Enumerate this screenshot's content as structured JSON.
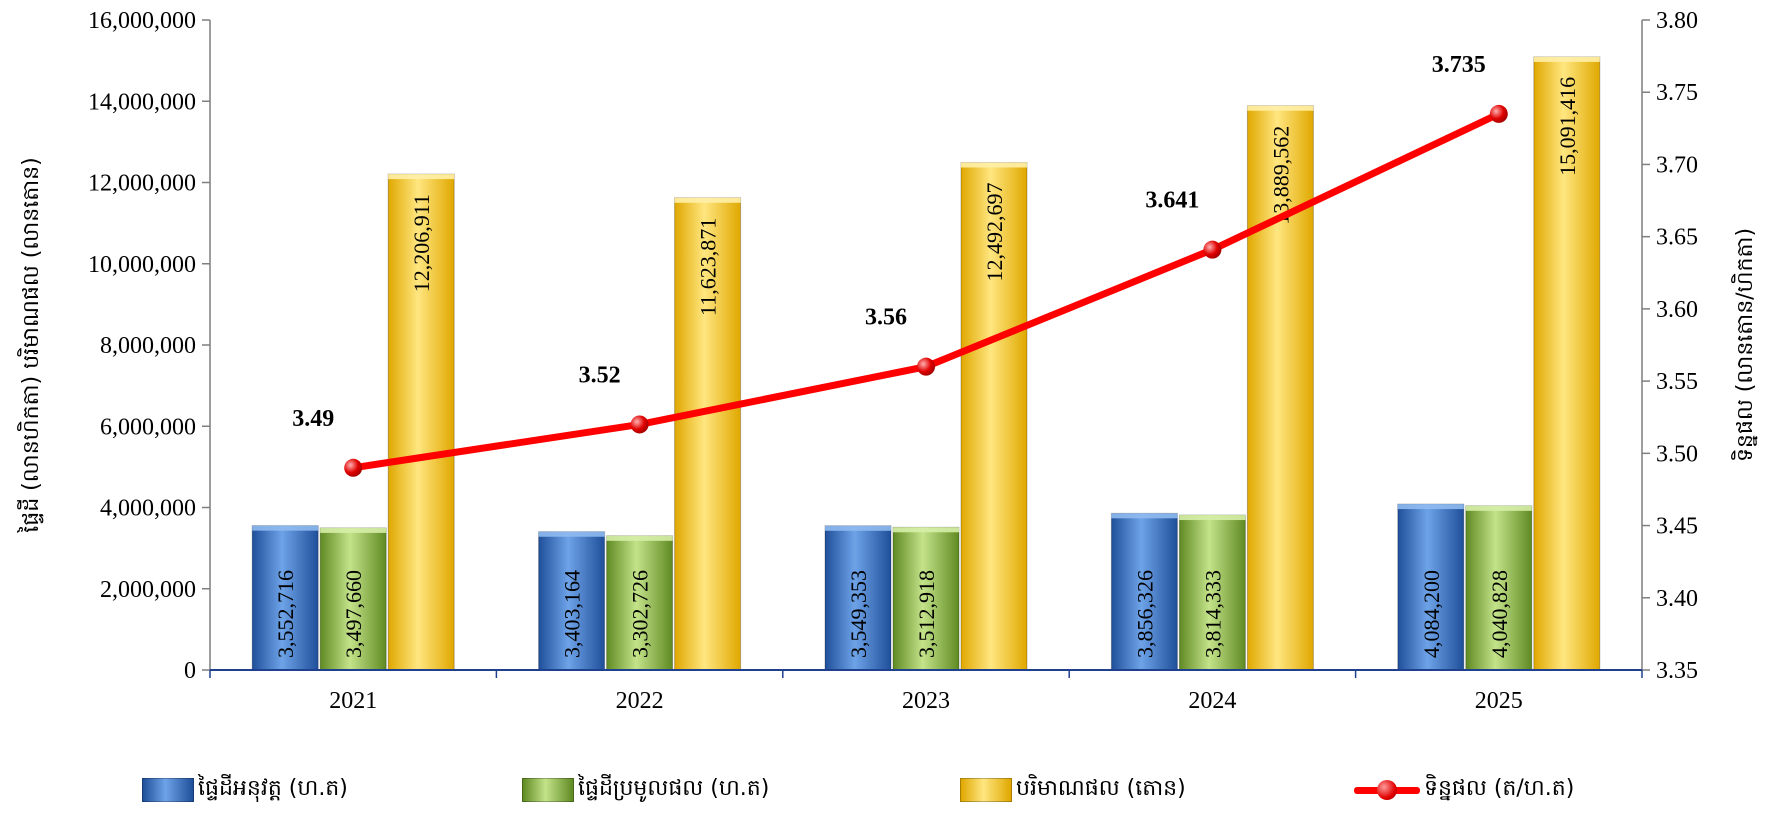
{
  "chart_data": {
    "type": "bar",
    "categories": [
      "2021",
      "2022",
      "2023",
      "2024",
      "2025"
    ],
    "series": [
      {
        "name": "ផ្ទៃដីអនុវត្ត (ហ.ត)",
        "axis": "left",
        "color": "#2f6fc4",
        "values": [
          3552716,
          3403164,
          3549353,
          3856326,
          4084200
        ],
        "labels": [
          "3,552,716",
          "3,403,164",
          "3,549,353",
          "3,856,326",
          "4,084,200"
        ]
      },
      {
        "name": "ផ្ទៃដីប្រមូលផល (ហ.ត)",
        "axis": "left",
        "color": "#8ab83c",
        "values": [
          3497660,
          3302726,
          3512918,
          3814333,
          4040828
        ],
        "labels": [
          "3,497,660",
          "3,302,726",
          "3,512,918",
          "3,814,333",
          "4,040,828"
        ]
      },
      {
        "name": "បរិមាណផល (តោន)",
        "axis": "left",
        "color": "#ffc000",
        "values": [
          12206911,
          11623871,
          12492697,
          13889562,
          15091416
        ],
        "labels": [
          "12,206,911",
          "11,623,871",
          "12,492,697",
          "13,889,562",
          "15,091,416"
        ]
      },
      {
        "name": "ទិន្នផល (ត/ហ.ត)",
        "axis": "right",
        "type": "line",
        "color": "#ff0000",
        "values": [
          3.49,
          3.52,
          3.56,
          3.641,
          3.735
        ],
        "labels": [
          "3.49",
          "3.52",
          "3.56",
          "3.641",
          "3.735"
        ]
      }
    ],
    "ylabel": "ផ្ទៃដី (លានហិកតា) បរិមាណផល (លានតោន)",
    "y2label": "ទិន្នផល (លានតោន/ហិកតា)",
    "ylim": [
      0,
      16000000
    ],
    "y2lim": [
      3.35,
      3.8
    ],
    "yticks": [
      "0",
      "2,000,000",
      "4,000,000",
      "6,000,000",
      "8,000,000",
      "10,000,000",
      "12,000,000",
      "14,000,000",
      "16,000,000"
    ],
    "y2ticks": [
      "3.35",
      "3.40",
      "3.45",
      "3.50",
      "3.55",
      "3.60",
      "3.65",
      "3.70",
      "3.75",
      "3.80"
    ],
    "grid": false,
    "legend": "bottom"
  }
}
